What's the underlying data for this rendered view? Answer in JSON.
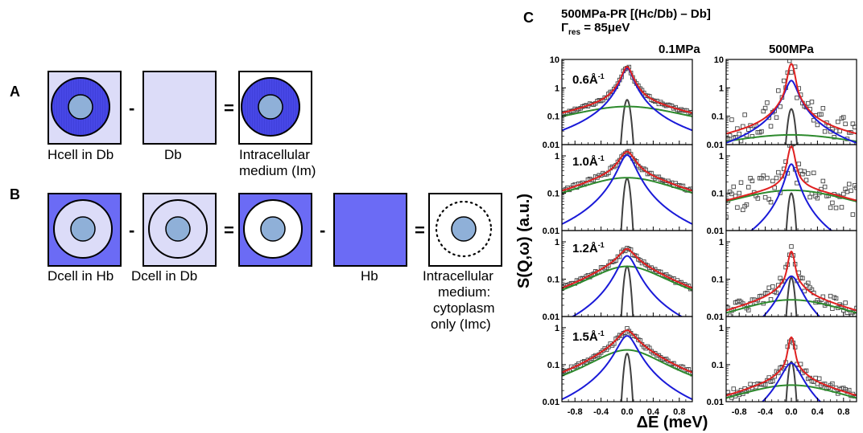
{
  "panel_a": {
    "letter": "A",
    "operators": [
      "-",
      "="
    ],
    "labels": [
      "Hcell in Db",
      "Db",
      "Intracellular",
      "medium (Im)"
    ]
  },
  "panel_b": {
    "letter": "B",
    "operators": [
      "-",
      "=",
      "-",
      "="
    ],
    "labels": [
      "Dcell in Hb",
      "Dcell in Db",
      "Hb",
      "Intracellular",
      "medium:",
      "cytoplasm",
      "only (Imc)"
    ]
  },
  "panel_c": {
    "letter": "C",
    "title_line1": "500MPa-PR [(Hc/Db) – Db]",
    "gamma_symbol": "Γ",
    "gamma_sub": "res",
    "gamma_value": " = 85μeV",
    "column_headers": [
      "0.1MPa",
      "500MPa"
    ],
    "row_labels": [
      "0.6Å",
      "1.0Å",
      "1.2Å",
      "1.5Å"
    ],
    "row_label_sup": "-1",
    "y_axis_title": "S(Q,ω) (a.u.)",
    "x_axis_title": "ΔE (meV)"
  },
  "colors": {
    "cell_pale": "#dcdcf8",
    "cell_blue": "#4747e6",
    "medium_blue": "#6b6bf5",
    "nucleus": "#8fb0d8",
    "fit_total": "#e02020",
    "fit_narrow": "#1a1ad8",
    "fit_broad": "#2d8a2d",
    "resolution": "#404040",
    "data_points": "#444444"
  },
  "chart_data": {
    "type": "scatter",
    "scale_y": "log",
    "x_label": "ΔE (meV)",
    "y_label": "S(Q,ω) (a.u.)",
    "xlim": [
      -1.0,
      1.0
    ],
    "x_ticks": [
      "-0.8",
      "-0.4",
      "0.0",
      "0.4",
      "0.8"
    ],
    "x_tick_values": [
      -0.8,
      -0.4,
      0.0,
      0.4,
      0.8
    ],
    "y_ticks_top": [
      "10",
      "1",
      "0.1",
      "0.01"
    ],
    "y_ticks": [
      "1",
      "0.1",
      "0.01"
    ],
    "resolution_fwhm_meV": 0.085,
    "panels": [
      {
        "column": "0.1MPa",
        "q": "0.6",
        "ylim": [
          0.01,
          10
        ],
        "total_peak": 5.5,
        "narrow": {
          "amp": 5.0,
          "hwhm": 0.08
        },
        "broad": {
          "amp": 0.22,
          "hwhm": 0.9
        },
        "res_amp": 0.38,
        "noise": 0.05
      },
      {
        "column": "500MPa",
        "q": "0.6",
        "ylim": [
          0.01,
          10
        ],
        "total_peak": 7.0,
        "narrow": {
          "amp": 1.8,
          "hwhm": 0.08
        },
        "broad": {
          "amp": 0.022,
          "hwhm": 1.2
        },
        "res_amp": 0.18,
        "noise": 0.5
      },
      {
        "column": "0.1MPa",
        "q": "1.0",
        "ylim": [
          0.01,
          2
        ],
        "total_peak": 1.3,
        "narrow": {
          "amp": 1.05,
          "hwhm": 0.12
        },
        "broad": {
          "amp": 0.26,
          "hwhm": 0.8
        },
        "res_amp": 0.25,
        "noise": 0.05
      },
      {
        "column": "500MPa",
        "q": "1.0",
        "ylim": [
          0.01,
          2
        ],
        "total_peak": 1.8,
        "narrow": {
          "amp": 0.6,
          "hwhm": 0.08
        },
        "broad": {
          "amp": 0.12,
          "hwhm": 1.0
        },
        "res_amp": 0.1,
        "noise": 0.45
      },
      {
        "column": "0.1MPa",
        "q": "1.2",
        "ylim": [
          0.01,
          2
        ],
        "total_peak": 0.65,
        "narrow": {
          "amp": 0.42,
          "hwhm": 0.13
        },
        "broad": {
          "amp": 0.22,
          "hwhm": 0.55
        },
        "res_amp": 0.22,
        "noise": 0.05
      },
      {
        "column": "500MPa",
        "q": "1.2",
        "ylim": [
          0.01,
          2
        ],
        "total_peak": 0.55,
        "narrow": {
          "amp": 0.12,
          "hwhm": 0.13
        },
        "broad": {
          "amp": 0.028,
          "hwhm": 0.9
        },
        "res_amp": 0.11,
        "noise": 0.2
      },
      {
        "column": "0.1MPa",
        "q": "1.5",
        "ylim": [
          0.01,
          2
        ],
        "total_peak": 0.85,
        "narrow": {
          "amp": 0.6,
          "hwhm": 0.14
        },
        "broad": {
          "amp": 0.25,
          "hwhm": 0.5
        },
        "res_amp": 0.2,
        "noise": 0.05
      },
      {
        "column": "500MPa",
        "q": "1.5",
        "ylim": [
          0.01,
          2
        ],
        "total_peak": 0.55,
        "narrow": {
          "amp": 0.11,
          "hwhm": 0.14
        },
        "broad": {
          "amp": 0.028,
          "hwhm": 0.9
        },
        "res_amp": 0.12,
        "noise": 0.12
      }
    ]
  }
}
